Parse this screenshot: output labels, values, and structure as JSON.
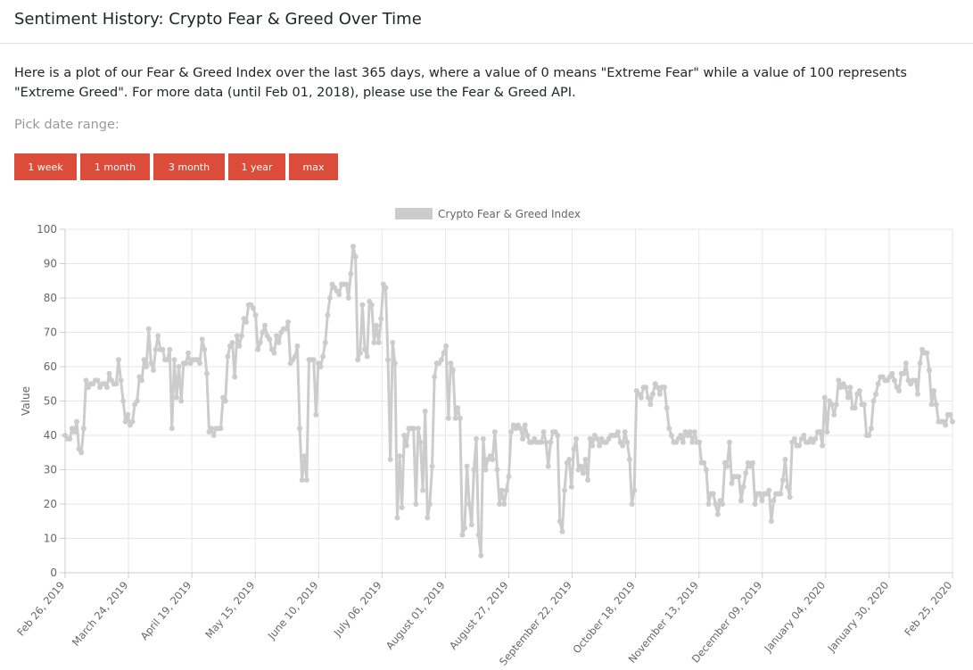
{
  "header": {
    "title": "Sentiment History: Crypto Fear & Greed Over Time"
  },
  "intro": {
    "text": "Here is a plot of our Fear & Greed Index over the last 365 days, where a value of 0 means \"Extreme Fear\" while a value of 100 represents \"Extreme Greed\". For more data (until Feb 01, 2018), please use the Fear & Greed API."
  },
  "range_picker": {
    "label": "Pick date range:",
    "buttons": [
      "1 week",
      "1 month",
      "3 month",
      "1 year",
      "max"
    ]
  },
  "colors": {
    "button": "#dc4c3a",
    "series": "#cccccc",
    "grid": "#e6e6e6"
  },
  "chart_data": {
    "type": "line",
    "legend": "top",
    "ylabel": "Value",
    "ylim": [
      0,
      100
    ],
    "yticks": [
      0,
      10,
      20,
      30,
      40,
      50,
      60,
      70,
      80,
      90,
      100
    ],
    "xtick_labels": [
      "Feb 26, 2019",
      "March 24, 2019",
      "April 19, 2019",
      "May 15, 2019",
      "June 10, 2019",
      "July 06, 2019",
      "August 01, 2019",
      "August 27, 2019",
      "September 22, 2019",
      "October 18, 2019",
      "November 13, 2019",
      "December 09, 2019",
      "January 04, 2020",
      "January 30, 2020",
      "Feb 25, 2020"
    ],
    "grid": true,
    "series": [
      {
        "name": "Crypto Fear & Greed Index",
        "values": [
          40,
          39,
          39,
          42,
          41,
          44,
          36,
          35,
          42,
          56,
          54,
          55,
          55,
          56,
          56,
          54,
          55,
          55,
          54,
          58,
          56,
          55,
          55,
          62,
          56,
          50,
          44,
          46,
          43,
          44,
          49,
          50,
          57,
          56,
          62,
          60,
          71,
          61,
          59,
          65,
          69,
          65,
          65,
          62,
          62,
          65,
          42,
          62,
          51,
          60,
          50,
          61,
          61,
          64,
          61,
          62,
          62,
          62,
          61,
          68,
          65,
          58,
          41,
          42,
          40,
          42,
          42,
          42,
          51,
          50,
          63,
          66,
          67,
          57,
          69,
          66,
          69,
          74,
          73,
          78,
          78,
          77,
          75,
          65,
          67,
          70,
          72,
          69,
          68,
          65,
          64,
          69,
          67,
          70,
          71,
          71,
          73,
          61,
          62,
          63,
          66,
          42,
          27,
          34,
          27,
          62,
          62,
          62,
          46,
          61,
          60,
          63,
          67,
          75,
          80,
          84,
          83,
          82,
          81,
          84,
          84,
          84,
          80,
          87,
          95,
          92,
          62,
          64,
          78,
          65,
          63,
          79,
          78,
          67,
          72,
          67,
          74,
          84,
          83,
          62,
          33,
          67,
          61,
          16,
          34,
          19,
          40,
          37,
          42,
          42,
          42,
          20,
          42,
          38,
          24,
          47,
          16,
          20,
          31,
          57,
          61,
          61,
          62,
          64,
          66,
          45,
          61,
          59,
          45,
          48,
          45,
          11,
          13,
          31,
          20,
          14,
          30,
          39,
          11,
          5,
          39,
          30,
          33,
          34,
          33,
          41,
          30,
          20,
          24,
          20,
          24,
          28,
          41,
          43,
          42,
          43,
          42,
          39,
          43,
          40,
          38,
          38,
          39,
          38,
          38,
          38,
          41,
          38,
          31,
          38,
          41,
          41,
          40,
          15,
          12,
          24,
          32,
          33,
          25,
          36,
          39,
          30,
          31,
          29,
          33,
          27,
          39,
          37,
          40,
          39,
          37,
          39,
          38,
          38,
          39,
          40,
          40,
          40,
          41,
          38,
          37,
          41,
          38,
          33,
          20,
          24,
          53,
          52,
          51,
          54,
          54,
          51,
          49,
          52,
          55,
          54,
          52,
          54,
          54,
          48,
          42,
          40,
          38,
          38,
          39,
          40,
          38,
          41,
          40,
          41,
          38,
          41,
          38,
          38,
          32,
          32,
          30,
          20,
          23,
          23,
          20,
          17,
          21,
          20,
          32,
          31,
          38,
          26,
          28,
          28,
          28,
          21,
          25,
          29,
          32,
          31,
          32,
          20,
          23,
          23,
          21,
          23,
          23,
          24,
          15,
          21,
          23,
          23,
          23,
          27,
          33,
          25,
          22,
          38,
          39,
          37,
          37,
          39,
          40,
          38,
          38,
          39,
          38,
          39,
          41,
          41,
          37,
          51,
          41,
          50,
          49,
          46,
          49,
          56,
          54,
          55,
          54,
          51,
          54,
          48,
          48,
          52,
          53,
          49,
          49,
          40,
          40,
          42,
          50,
          52,
          55,
          57,
          57,
          56,
          56,
          57,
          58,
          56,
          54,
          53,
          58,
          58,
          61,
          56,
          55,
          56,
          56,
          52,
          61,
          65,
          64,
          64,
          59,
          49,
          53,
          49,
          44,
          44,
          44,
          43,
          46,
          46,
          44
        ]
      }
    ]
  }
}
